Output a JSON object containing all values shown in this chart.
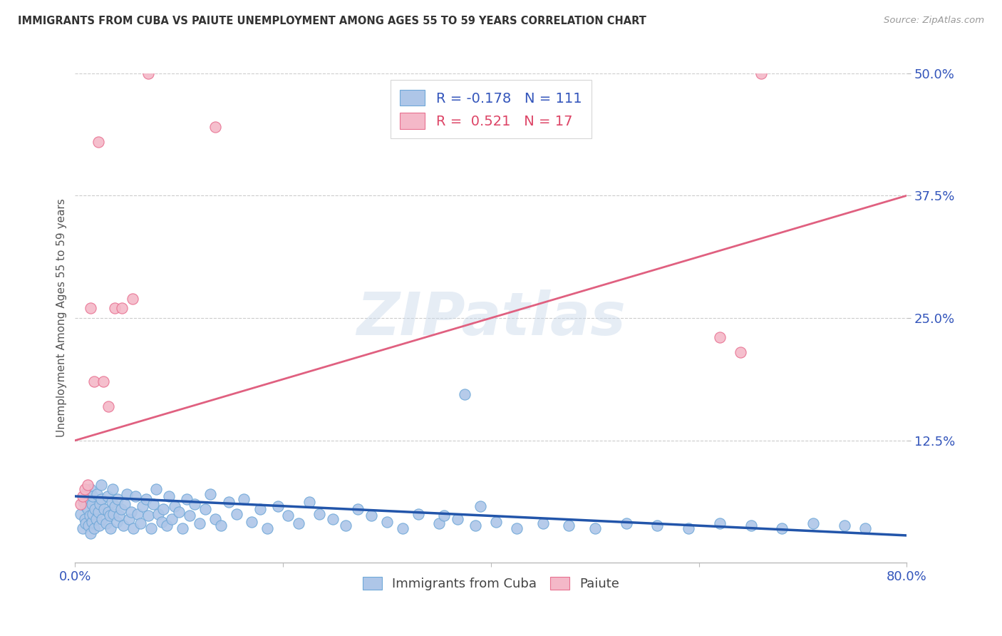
{
  "title": "IMMIGRANTS FROM CUBA VS PAIUTE UNEMPLOYMENT AMONG AGES 55 TO 59 YEARS CORRELATION CHART",
  "source": "Source: ZipAtlas.com",
  "ylabel": "Unemployment Among Ages 55 to 59 years",
  "xlim": [
    0.0,
    0.8
  ],
  "ylim": [
    0.0,
    0.5
  ],
  "ytick_positions": [
    0.125,
    0.25,
    0.375,
    0.5
  ],
  "ytick_labels": [
    "12.5%",
    "25.0%",
    "37.5%",
    "50.0%"
  ],
  "cuba_color": "#AEC6E8",
  "cuba_edge_color": "#6FA8D8",
  "paiute_color": "#F4B8C8",
  "paiute_edge_color": "#E87090",
  "line_cuba_color": "#2255AA",
  "line_paiute_color": "#E06080",
  "cuba_R": -0.178,
  "cuba_N": 111,
  "paiute_R": 0.521,
  "paiute_N": 17,
  "watermark": "ZIPatlas",
  "cuba_line_x0": 0.0,
  "cuba_line_y0": 0.068,
  "cuba_line_x1": 0.8,
  "cuba_line_y1": 0.028,
  "paiute_line_x0": 0.0,
  "paiute_line_y0": 0.125,
  "paiute_line_x1": 0.8,
  "paiute_line_y1": 0.375,
  "cuba_scatter_x": [
    0.005,
    0.007,
    0.008,
    0.009,
    0.01,
    0.01,
    0.011,
    0.012,
    0.013,
    0.014,
    0.014,
    0.015,
    0.015,
    0.016,
    0.016,
    0.017,
    0.017,
    0.018,
    0.019,
    0.02,
    0.021,
    0.022,
    0.023,
    0.024,
    0.025,
    0.025,
    0.026,
    0.028,
    0.03,
    0.031,
    0.032,
    0.033,
    0.034,
    0.035,
    0.036,
    0.037,
    0.038,
    0.04,
    0.041,
    0.042,
    0.044,
    0.046,
    0.048,
    0.05,
    0.052,
    0.054,
    0.056,
    0.058,
    0.06,
    0.063,
    0.065,
    0.068,
    0.07,
    0.073,
    0.075,
    0.078,
    0.08,
    0.083,
    0.085,
    0.088,
    0.09,
    0.093,
    0.096,
    0.1,
    0.103,
    0.107,
    0.11,
    0.115,
    0.12,
    0.125,
    0.13,
    0.135,
    0.14,
    0.148,
    0.155,
    0.162,
    0.17,
    0.178,
    0.185,
    0.195,
    0.205,
    0.215,
    0.225,
    0.235,
    0.248,
    0.26,
    0.272,
    0.285,
    0.3,
    0.315,
    0.33,
    0.35,
    0.368,
    0.385,
    0.405,
    0.425,
    0.45,
    0.475,
    0.5,
    0.53,
    0.56,
    0.59,
    0.62,
    0.65,
    0.68,
    0.71,
    0.74,
    0.76,
    0.355,
    0.375,
    0.39
  ],
  "cuba_scatter_y": [
    0.05,
    0.035,
    0.062,
    0.045,
    0.058,
    0.04,
    0.072,
    0.055,
    0.038,
    0.065,
    0.048,
    0.075,
    0.03,
    0.06,
    0.042,
    0.068,
    0.05,
    0.035,
    0.055,
    0.045,
    0.07,
    0.052,
    0.038,
    0.06,
    0.065,
    0.08,
    0.045,
    0.055,
    0.04,
    0.068,
    0.052,
    0.048,
    0.035,
    0.062,
    0.075,
    0.05,
    0.058,
    0.042,
    0.065,
    0.048,
    0.055,
    0.038,
    0.06,
    0.07,
    0.045,
    0.052,
    0.035,
    0.068,
    0.05,
    0.04,
    0.058,
    0.065,
    0.048,
    0.035,
    0.06,
    0.075,
    0.05,
    0.042,
    0.055,
    0.038,
    0.068,
    0.045,
    0.058,
    0.052,
    0.035,
    0.065,
    0.048,
    0.06,
    0.04,
    0.055,
    0.07,
    0.045,
    0.038,
    0.062,
    0.05,
    0.065,
    0.042,
    0.055,
    0.035,
    0.058,
    0.048,
    0.04,
    0.062,
    0.05,
    0.045,
    0.038,
    0.055,
    0.048,
    0.042,
    0.035,
    0.05,
    0.04,
    0.045,
    0.038,
    0.042,
    0.035,
    0.04,
    0.038,
    0.035,
    0.04,
    0.038,
    0.035,
    0.04,
    0.038,
    0.035,
    0.04,
    0.038,
    0.035,
    0.048,
    0.172,
    0.058
  ],
  "paiute_scatter_x": [
    0.005,
    0.007,
    0.009,
    0.012,
    0.015,
    0.018,
    0.022,
    0.027,
    0.032,
    0.038,
    0.045,
    0.055,
    0.07,
    0.135,
    0.62,
    0.64,
    0.66
  ],
  "paiute_scatter_y": [
    0.06,
    0.068,
    0.075,
    0.08,
    0.26,
    0.185,
    0.43,
    0.185,
    0.16,
    0.26,
    0.26,
    0.27,
    0.5,
    0.445,
    0.23,
    0.215,
    0.5
  ]
}
